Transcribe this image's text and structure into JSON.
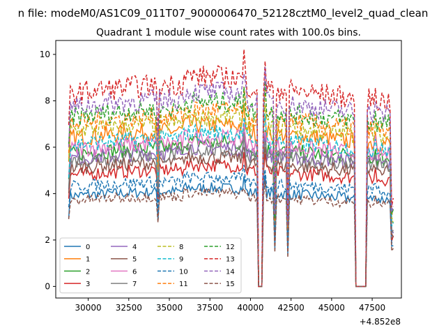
{
  "chart_data": {
    "type": "line",
    "suptitle": "n file: modeM0/AS1C09_011T07_9000006470_52128cztM0_level2_quad_clean",
    "title": "Quadrant 1 module wise count rates with 100.0s bins.",
    "xlabel": "",
    "ylabel": "",
    "x_offset_label": "+4.852e8",
    "xlim": [
      28000,
      49300
    ],
    "ylim": [
      -0.5,
      10.6
    ],
    "x_ticks": [
      30000,
      32500,
      35000,
      37500,
      40000,
      42500,
      45000,
      47500
    ],
    "x_tick_labels": [
      "30000",
      "32500",
      "35000",
      "37500",
      "40000",
      "42500",
      "45000",
      "47500"
    ],
    "y_ticks": [
      0,
      2,
      4,
      6,
      8,
      10
    ],
    "y_tick_labels": [
      "0",
      "2",
      "4",
      "6",
      "8",
      "10"
    ],
    "x_range": [
      28800,
      48800
    ],
    "bin_size": 100,
    "legend_position": "lower-left",
    "legend_columns": 4,
    "series": [
      {
        "name": "0",
        "color": "#1f77b4",
        "style": "solid",
        "level": 3.9
      },
      {
        "name": "1",
        "color": "#ff7f0e",
        "style": "solid",
        "level": 6.4
      },
      {
        "name": "2",
        "color": "#2ca02c",
        "style": "solid",
        "level": 5.7
      },
      {
        "name": "3",
        "color": "#d62728",
        "style": "solid",
        "level": 4.8
      },
      {
        "name": "4",
        "color": "#9467bd",
        "style": "solid",
        "level": 5.5
      },
      {
        "name": "5",
        "color": "#8c564b",
        "style": "solid",
        "level": 5.1
      },
      {
        "name": "6",
        "color": "#e377c2",
        "style": "solid",
        "level": 5.9
      },
      {
        "name": "7",
        "color": "#7f7f7f",
        "style": "solid",
        "level": 5.4
      },
      {
        "name": "8",
        "color": "#bcbd22",
        "style": "dashed",
        "level": 6.7
      },
      {
        "name": "9",
        "color": "#17becf",
        "style": "dashed",
        "level": 6.1
      },
      {
        "name": "10",
        "color": "#1f77b4",
        "style": "dashed",
        "level": 4.3
      },
      {
        "name": "11",
        "color": "#ff7f0e",
        "style": "dashed",
        "level": 7.0
      },
      {
        "name": "12",
        "color": "#2ca02c",
        "style": "dashed",
        "level": 7.3
      },
      {
        "name": "13",
        "color": "#d62728",
        "style": "dashed",
        "level": 8.3
      },
      {
        "name": "14",
        "color": "#9467bd",
        "style": "dashed",
        "level": 7.7
      },
      {
        "name": "15",
        "color": "#8c564b",
        "style": "dashed",
        "level": 3.7
      }
    ],
    "dips": [
      {
        "x": [
          34300,
          34300
        ],
        "factor": 0.6
      },
      {
        "x": [
          40500,
          40700
        ],
        "factor": 0.0
      },
      {
        "x": [
          41500,
          41500
        ],
        "factor": 0.4
      },
      {
        "x": [
          42300,
          42300
        ],
        "factor": 0.35
      },
      {
        "x": [
          46500,
          47100
        ],
        "factor": 0.0
      },
      {
        "x": [
          48700,
          48800
        ],
        "factor": 0.45
      }
    ],
    "peaks": [
      {
        "x": 34300,
        "boost": 1.2
      },
      {
        "x": 39600,
        "boost": 1.1
      },
      {
        "x": 40900,
        "boost": 1.15
      },
      {
        "x": 47700,
        "boost": 1.08
      }
    ]
  }
}
